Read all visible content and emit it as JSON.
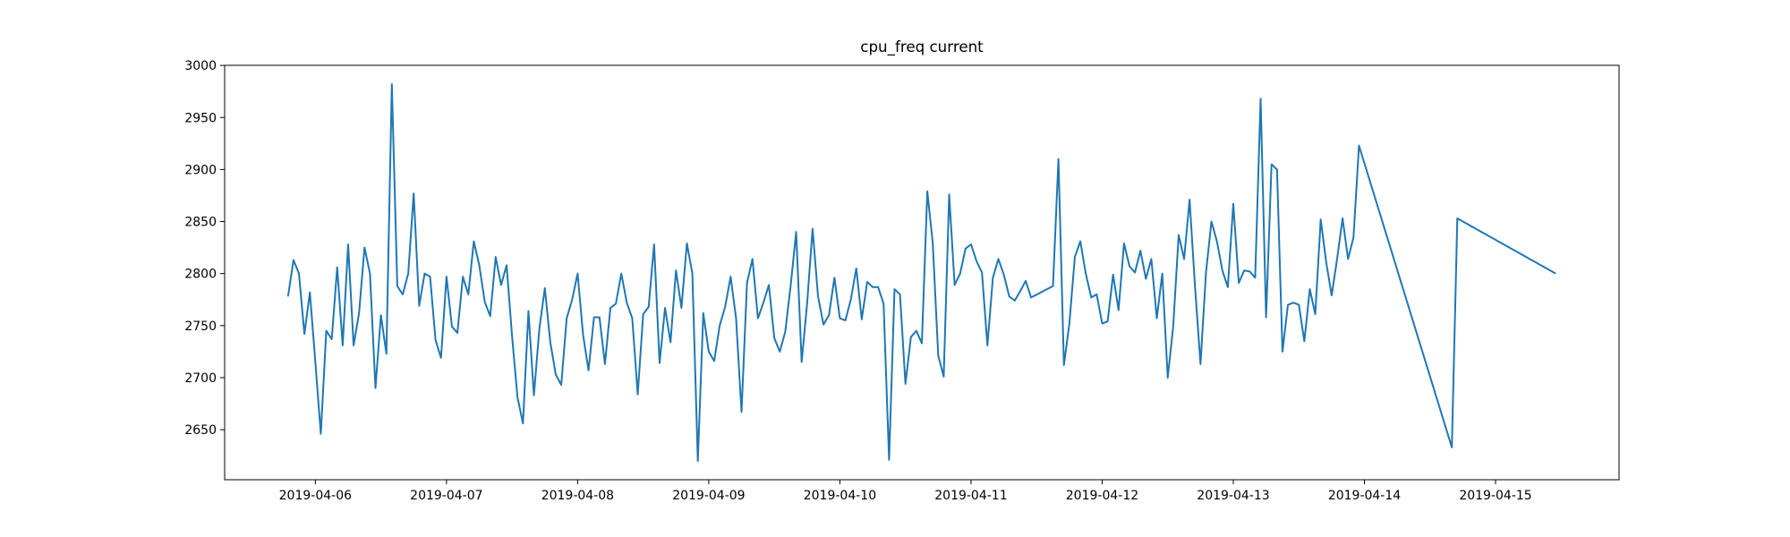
{
  "chart_data": {
    "type": "line",
    "title": "cpu_freq current",
    "color": "#1f77b4",
    "xlim": [
      "2019-04-05 07:24",
      "2019-04-15 22:36"
    ],
    "xticks": [
      "2019-04-06",
      "2019-04-07",
      "2019-04-08",
      "2019-04-09",
      "2019-04-10",
      "2019-04-11",
      "2019-04-12",
      "2019-04-13",
      "2019-04-14",
      "2019-04-15"
    ],
    "ylim": [
      2601.9,
      3000.1
    ],
    "yticks": [
      2650,
      2700,
      2750,
      2800,
      2850,
      2900,
      2950,
      3000
    ],
    "x": [
      "2019-04-05 19:00",
      "2019-04-05 20:00",
      "2019-04-05 21:00",
      "2019-04-05 22:00",
      "2019-04-05 23:00",
      "2019-04-06 00:00",
      "2019-04-06 01:00",
      "2019-04-06 02:00",
      "2019-04-06 03:00",
      "2019-04-06 04:00",
      "2019-04-06 05:00",
      "2019-04-06 06:00",
      "2019-04-06 07:00",
      "2019-04-06 08:00",
      "2019-04-06 09:00",
      "2019-04-06 10:00",
      "2019-04-06 11:00",
      "2019-04-06 12:00",
      "2019-04-06 13:00",
      "2019-04-06 14:00",
      "2019-04-06 15:00",
      "2019-04-06 16:00",
      "2019-04-06 17:00",
      "2019-04-06 18:00",
      "2019-04-06 19:00",
      "2019-04-06 20:00",
      "2019-04-06 21:00",
      "2019-04-06 22:00",
      "2019-04-06 23:00",
      "2019-04-07 00:00",
      "2019-04-07 01:00",
      "2019-04-07 02:00",
      "2019-04-07 03:00",
      "2019-04-07 04:00",
      "2019-04-07 05:00",
      "2019-04-07 06:00",
      "2019-04-07 07:00",
      "2019-04-07 08:00",
      "2019-04-07 09:00",
      "2019-04-07 10:00",
      "2019-04-07 11:00",
      "2019-04-07 12:00",
      "2019-04-07 13:00",
      "2019-04-07 14:00",
      "2019-04-07 15:00",
      "2019-04-07 16:00",
      "2019-04-07 17:00",
      "2019-04-07 18:00",
      "2019-04-07 19:00",
      "2019-04-07 20:00",
      "2019-04-07 21:00",
      "2019-04-07 22:00",
      "2019-04-07 23:00",
      "2019-04-08 00:00",
      "2019-04-08 01:00",
      "2019-04-08 02:00",
      "2019-04-08 03:00",
      "2019-04-08 04:00",
      "2019-04-08 05:00",
      "2019-04-08 06:00",
      "2019-04-08 07:00",
      "2019-04-08 08:00",
      "2019-04-08 09:00",
      "2019-04-08 10:00",
      "2019-04-08 11:00",
      "2019-04-08 12:00",
      "2019-04-08 13:00",
      "2019-04-08 14:00",
      "2019-04-08 15:00",
      "2019-04-08 16:00",
      "2019-04-08 17:00",
      "2019-04-08 18:00",
      "2019-04-08 19:00",
      "2019-04-08 20:00",
      "2019-04-08 21:00",
      "2019-04-08 22:00",
      "2019-04-08 23:00",
      "2019-04-09 00:00",
      "2019-04-09 01:00",
      "2019-04-09 02:00",
      "2019-04-09 03:00",
      "2019-04-09 04:00",
      "2019-04-09 05:00",
      "2019-04-09 06:00",
      "2019-04-09 07:00",
      "2019-04-09 08:00",
      "2019-04-09 09:00",
      "2019-04-09 10:00",
      "2019-04-09 11:00",
      "2019-04-09 12:00",
      "2019-04-09 13:00",
      "2019-04-09 14:00",
      "2019-04-09 15:00",
      "2019-04-09 16:00",
      "2019-04-09 17:00",
      "2019-04-09 18:00",
      "2019-04-09 19:00",
      "2019-04-09 20:00",
      "2019-04-09 21:00",
      "2019-04-09 22:00",
      "2019-04-09 23:00",
      "2019-04-10 00:00",
      "2019-04-10 01:00",
      "2019-04-10 02:00",
      "2019-04-10 03:00",
      "2019-04-10 04:00",
      "2019-04-10 05:00",
      "2019-04-10 06:00",
      "2019-04-10 07:00",
      "2019-04-10 08:00",
      "2019-04-10 09:00",
      "2019-04-10 10:00",
      "2019-04-10 11:00",
      "2019-04-10 12:00",
      "2019-04-10 13:00",
      "2019-04-10 14:00",
      "2019-04-10 15:00",
      "2019-04-10 16:00",
      "2019-04-10 17:00",
      "2019-04-10 18:00",
      "2019-04-10 19:00",
      "2019-04-10 20:00",
      "2019-04-10 21:00",
      "2019-04-10 22:00",
      "2019-04-10 23:00",
      "2019-04-11 00:00",
      "2019-04-11 01:00",
      "2019-04-11 02:00",
      "2019-04-11 03:00",
      "2019-04-11 04:00",
      "2019-04-11 05:00",
      "2019-04-11 06:00",
      "2019-04-11 07:00",
      "2019-04-11 08:00",
      "2019-04-11 09:00",
      "2019-04-11 10:00",
      "2019-04-11 11:00",
      "2019-04-11 15:00",
      "2019-04-11 16:00",
      "2019-04-11 17:00",
      "2019-04-11 18:00",
      "2019-04-11 19:00",
      "2019-04-11 20:00",
      "2019-04-11 21:00",
      "2019-04-11 22:00",
      "2019-04-11 23:00",
      "2019-04-12 00:00",
      "2019-04-12 01:00",
      "2019-04-12 02:00",
      "2019-04-12 03:00",
      "2019-04-12 04:00",
      "2019-04-12 05:00",
      "2019-04-12 06:00",
      "2019-04-12 07:00",
      "2019-04-12 08:00",
      "2019-04-12 09:00",
      "2019-04-12 10:00",
      "2019-04-12 11:00",
      "2019-04-12 12:00",
      "2019-04-12 13:00",
      "2019-04-12 14:00",
      "2019-04-12 15:00",
      "2019-04-12 16:00",
      "2019-04-12 17:00",
      "2019-04-12 18:00",
      "2019-04-12 19:00",
      "2019-04-12 20:00",
      "2019-04-12 21:00",
      "2019-04-12 22:00",
      "2019-04-12 23:00",
      "2019-04-13 00:00",
      "2019-04-13 01:00",
      "2019-04-13 02:00",
      "2019-04-13 03:00",
      "2019-04-13 04:00",
      "2019-04-13 05:00",
      "2019-04-13 06:00",
      "2019-04-13 07:00",
      "2019-04-13 08:00",
      "2019-04-13 09:00",
      "2019-04-13 10:00",
      "2019-04-13 11:00",
      "2019-04-13 12:00",
      "2019-04-13 13:00",
      "2019-04-13 14:00",
      "2019-04-13 15:00",
      "2019-04-13 16:00",
      "2019-04-13 17:00",
      "2019-04-13 18:00",
      "2019-04-13 19:00",
      "2019-04-13 20:00",
      "2019-04-13 21:00",
      "2019-04-13 22:00",
      "2019-04-13 23:00",
      "2019-04-14 16:00",
      "2019-04-14 17:00",
      "2019-04-15 11:00"
    ],
    "values": [
      2778,
      2813,
      2800,
      2742,
      2782,
      2715,
      2646,
      2745,
      2737,
      2806,
      2731,
      2828,
      2731,
      2762,
      2825,
      2800,
      2690,
      2760,
      2723,
      2982,
      2788,
      2780,
      2800,
      2877,
      2769,
      2800,
      2797,
      2736,
      2719,
      2797,
      2749,
      2743,
      2797,
      2780,
      2831,
      2808,
      2773,
      2759,
      2816,
      2789,
      2808,
      2740,
      2681,
      2656,
      2764,
      2683,
      2747,
      2786,
      2734,
      2703,
      2693,
      2757,
      2775,
      2800,
      2741,
      2707,
      2758,
      2758,
      2713,
      2767,
      2771,
      2800,
      2772,
      2757,
      2684,
      2761,
      2768,
      2828,
      2714,
      2767,
      2734,
      2803,
      2767,
      2829,
      2800,
      2620,
      2762,
      2725,
      2716,
      2750,
      2768,
      2797,
      2757,
      2667,
      2791,
      2814,
      2757,
      2772,
      2789,
      2738,
      2725,
      2744,
      2789,
      2840,
      2715,
      2771,
      2843,
      2778,
      2751,
      2760,
      2796,
      2757,
      2755,
      2775,
      2805,
      2756,
      2792,
      2787,
      2787,
      2771,
      2621,
      2785,
      2780,
      2694,
      2739,
      2745,
      2733,
      2879,
      2829,
      2721,
      2701,
      2876,
      2789,
      2800,
      2824,
      2828,
      2812,
      2801,
      2731,
      2796,
      2814,
      2799,
      2778,
      2774,
      2783,
      2793,
      2777,
      2788,
      2910,
      2712,
      2752,
      2816,
      2831,
      2800,
      2777,
      2780,
      2752,
      2754,
      2799,
      2765,
      2829,
      2807,
      2801,
      2822,
      2795,
      2814,
      2757,
      2800,
      2700,
      2749,
      2837,
      2814,
      2871,
      2787,
      2713,
      2801,
      2850,
      2831,
      2803,
      2787,
      2867,
      2791,
      2803,
      2802,
      2796,
      2968,
      2758,
      2905,
      2900,
      2725,
      2770,
      2772,
      2770,
      2735,
      2785,
      2761,
      2852,
      2811,
      2779,
      2814,
      2853,
      2814,
      2835,
      2923,
      2633,
      2853,
      2800
    ]
  }
}
